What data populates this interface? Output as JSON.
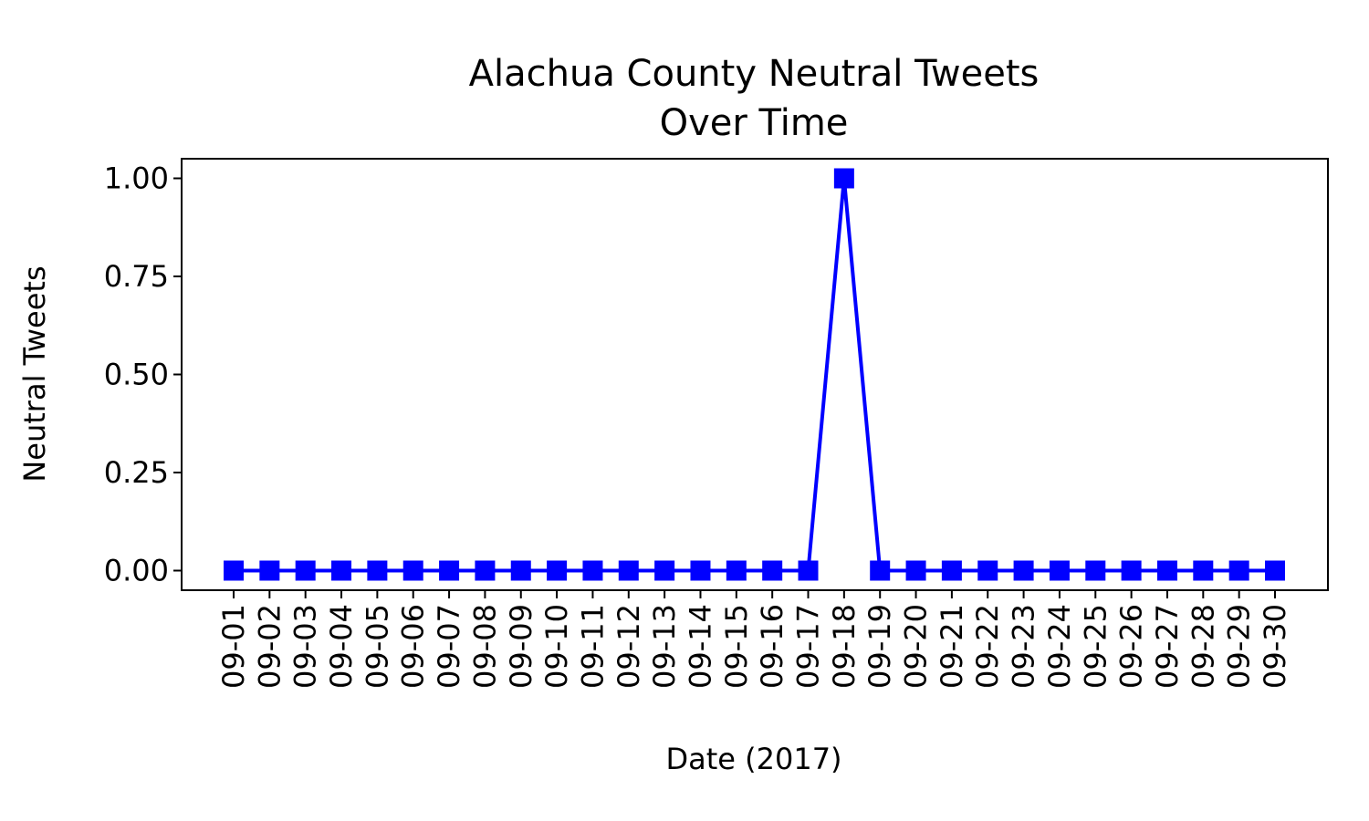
{
  "chart_data": {
    "type": "line",
    "title": "Alachua County Neutral Tweets",
    "subtitle": "Over Time",
    "xlabel": "Date (2017)",
    "ylabel": "Neutral Tweets",
    "ylabel_color": "#0000ff",
    "line_color": "#0000ff",
    "marker": "square",
    "grid": false,
    "ylim": [
      -0.05,
      1.05
    ],
    "yticks": [
      "0.00",
      "0.25",
      "0.50",
      "0.75",
      "1.00"
    ],
    "ytick_values": [
      0,
      0.25,
      0.5,
      0.75,
      1.0
    ],
    "x": [
      "09-01",
      "09-02",
      "09-03",
      "09-04",
      "09-05",
      "09-06",
      "09-07",
      "09-08",
      "09-09",
      "09-10",
      "09-11",
      "09-12",
      "09-13",
      "09-14",
      "09-15",
      "09-16",
      "09-17",
      "09-18",
      "09-19",
      "09-20",
      "09-21",
      "09-22",
      "09-23",
      "09-24",
      "09-25",
      "09-26",
      "09-27",
      "09-28",
      "09-29",
      "09-30"
    ],
    "series": [
      {
        "values": [
          0,
          0,
          0,
          0,
          0,
          0,
          0,
          0,
          0,
          0,
          0,
          0,
          0,
          0,
          0,
          0,
          0,
          1,
          0,
          0,
          0,
          0,
          0,
          0,
          0,
          0,
          0,
          0,
          0,
          0
        ]
      }
    ]
  }
}
